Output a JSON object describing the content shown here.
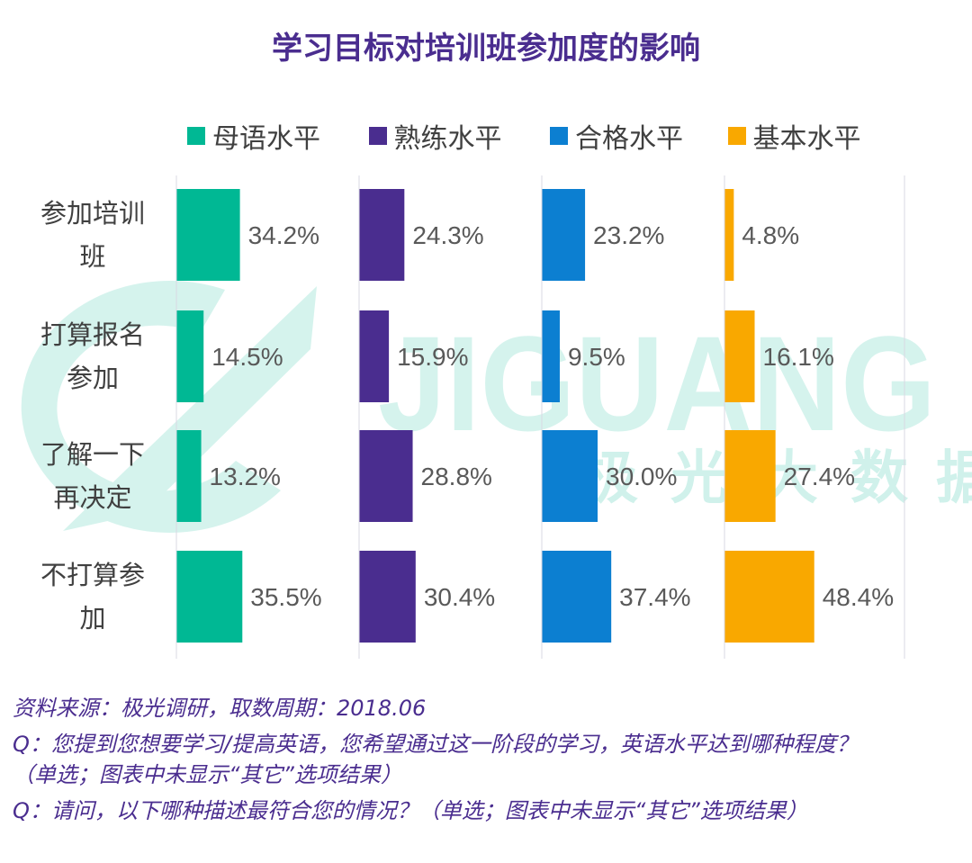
{
  "chart_data": {
    "type": "bar",
    "orientation": "horizontal",
    "layout": "small-multiples",
    "title": "学习目标对培训班参加度的影响",
    "categories": [
      "参加培训班",
      "打算报名参加",
      "了解一下再决定",
      "不打算参加"
    ],
    "category_lines": [
      [
        "参加培训",
        "班"
      ],
      [
        "打算报名",
        "参加"
      ],
      [
        "了解一下",
        "再决定"
      ],
      [
        "不打算参",
        "加"
      ]
    ],
    "series": [
      {
        "name": "母语水平",
        "color": "#00b894",
        "values": [
          34.2,
          14.5,
          13.2,
          35.5
        ]
      },
      {
        "name": "熟练水平",
        "color": "#4a2d8f",
        "values": [
          24.3,
          15.9,
          28.8,
          30.4
        ]
      },
      {
        "name": "合格水平",
        "color": "#0c7fd1",
        "values": [
          23.2,
          9.5,
          30.0,
          37.4
        ]
      },
      {
        "name": "基本水平",
        "color": "#f9a800",
        "values": [
          4.8,
          16.1,
          27.4,
          48.4
        ]
      }
    ],
    "value_suffix": "%",
    "xlim": [
      0,
      100
    ],
    "legend": "top",
    "grid": true
  },
  "watermark": {
    "brand": "JIGUANG",
    "chinese": [
      "极",
      "光",
      "大",
      "数",
      "据"
    ]
  },
  "footer": {
    "source": "资料来源：极光调研，取数周期：2018.06",
    "q1_line1": "Q：您提到您想要学习/提高英语，您希望通过这一阶段的学习，英语水平达到哪种程度？",
    "q1_line2": "（单选；图表中未显示“其它”选项结果）",
    "q2": "Q：请问，以下哪种描述最符合您的情况？（单选；图表中未显示“其它”选项结果）"
  }
}
